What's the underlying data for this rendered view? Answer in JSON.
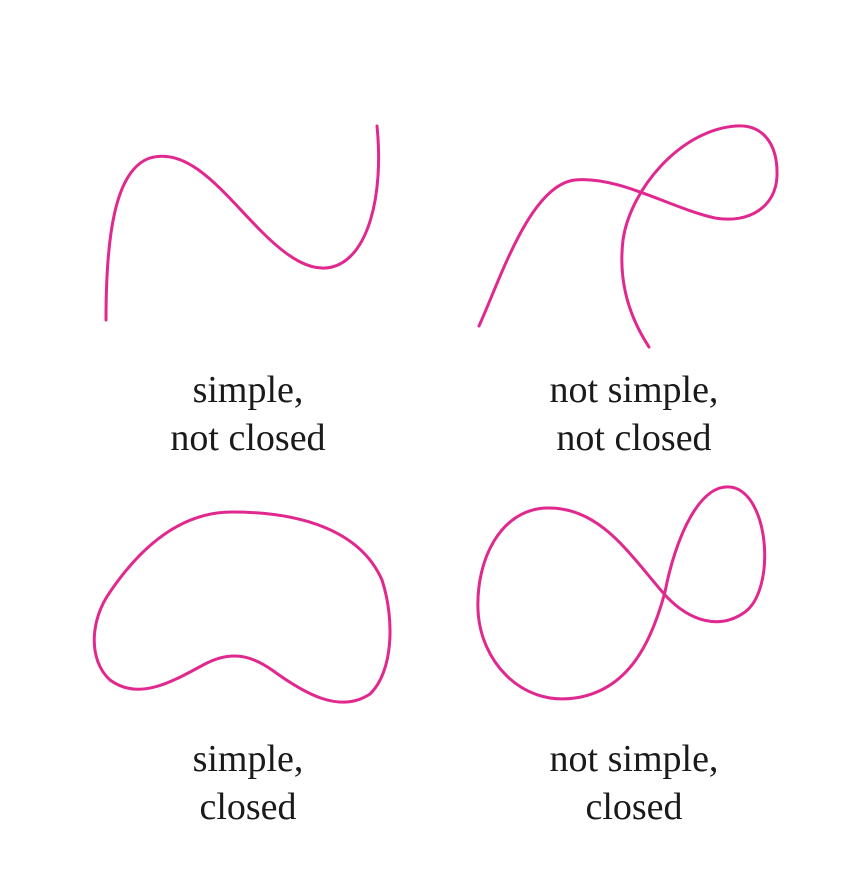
{
  "colors": {
    "curve": "#e0288e",
    "text": "#1a1a1a",
    "background": "#ffffff"
  },
  "panels": [
    {
      "id": "simple-not-closed",
      "line1": "simple,",
      "line2": "not closed"
    },
    {
      "id": "not-simple-not-closed",
      "line1": "not simple,",
      "line2": "not closed"
    },
    {
      "id": "simple-closed",
      "line1": "simple,",
      "line2": "closed"
    },
    {
      "id": "not-simple-closed",
      "line1": "not simple,",
      "line2": "closed"
    }
  ]
}
